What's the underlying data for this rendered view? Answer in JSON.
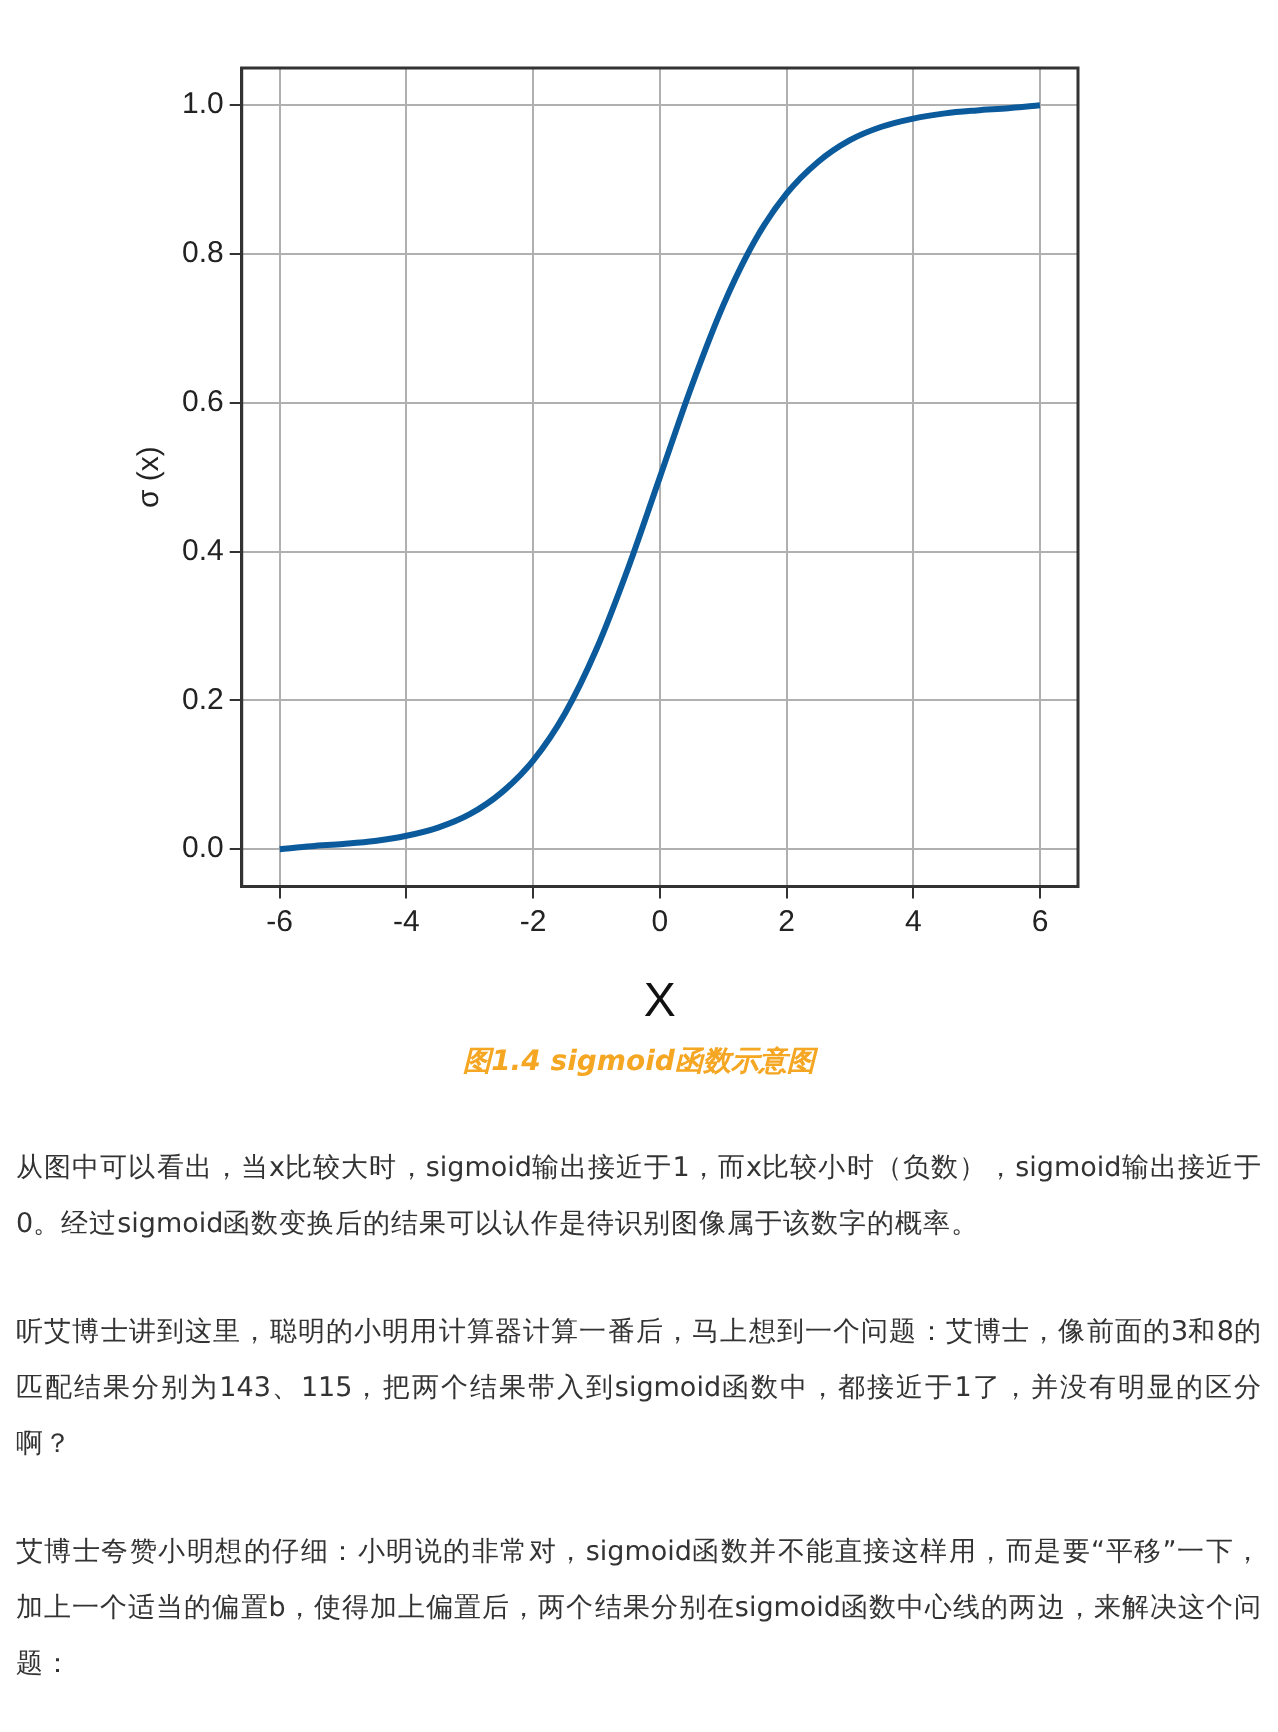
{
  "chart_data": {
    "type": "line",
    "title": "图1.4 sigmoid函数示意图",
    "xlabel": "X",
    "ylabel": "σ (x)",
    "x": [
      -6,
      -5.5,
      -5,
      -4.5,
      -4,
      -3.5,
      -3,
      -2.5,
      -2,
      -1.5,
      -1,
      -0.5,
      0,
      0.5,
      1,
      1.5,
      2,
      2.5,
      3,
      3.5,
      4,
      4.5,
      5,
      5.5,
      6
    ],
    "series": [
      {
        "color": "#0b5a9c",
        "values": [
          0.0,
          0.004,
          0.007,
          0.011,
          0.018,
          0.029,
          0.047,
          0.076,
          0.119,
          0.182,
          0.269,
          0.378,
          0.5,
          0.622,
          0.731,
          0.818,
          0.881,
          0.924,
          0.953,
          0.971,
          0.982,
          0.989,
          0.993,
          0.996,
          1.0
        ]
      }
    ],
    "xlim": [
      -6.6,
      6.6
    ],
    "ylim": [
      -0.05,
      1.05
    ],
    "xticks": [
      -6,
      -4,
      -2,
      0,
      2,
      4,
      6
    ],
    "yticks": [
      {
        "value": 0,
        "label": "0.0"
      },
      {
        "value": 0.2,
        "label": "0.2"
      },
      {
        "value": 0.4,
        "label": "0.4"
      },
      {
        "value": 0.6,
        "label": "0.6"
      },
      {
        "value": 0.8,
        "label": "0.8"
      },
      {
        "value": 1.0,
        "label": "1.0"
      }
    ],
    "grid": true,
    "legend": false,
    "marker": "none",
    "line_style": "solid",
    "annotations": [
      "从图中可以看出，当x比较大时，sigmoid输出接近于1，而x比较小时（负数），sigmoid输出接近于0。经过sigmoid函数变换后的结果可以认作是待识别图像属于该数字的概率。",
      "听艾博士讲到这里，聪明的小明用计算器计算一番后，马上想到一个问题：艾博士，像前面的3和8的匹配结果分别为143、115，把两个结果带入到sigmoid函数中，都接近于1了，并没有明显的区分啊？",
      "艾博士夸赞小明想的仔细：小明说的非常对，sigmoid函数并不能直接这样用，而是要“平移”一下，加上一个适当的偏置b，使得加上偏置后，两个结果分别在sigmoid函数中心线的两边，来解决这个问题："
    ]
  }
}
